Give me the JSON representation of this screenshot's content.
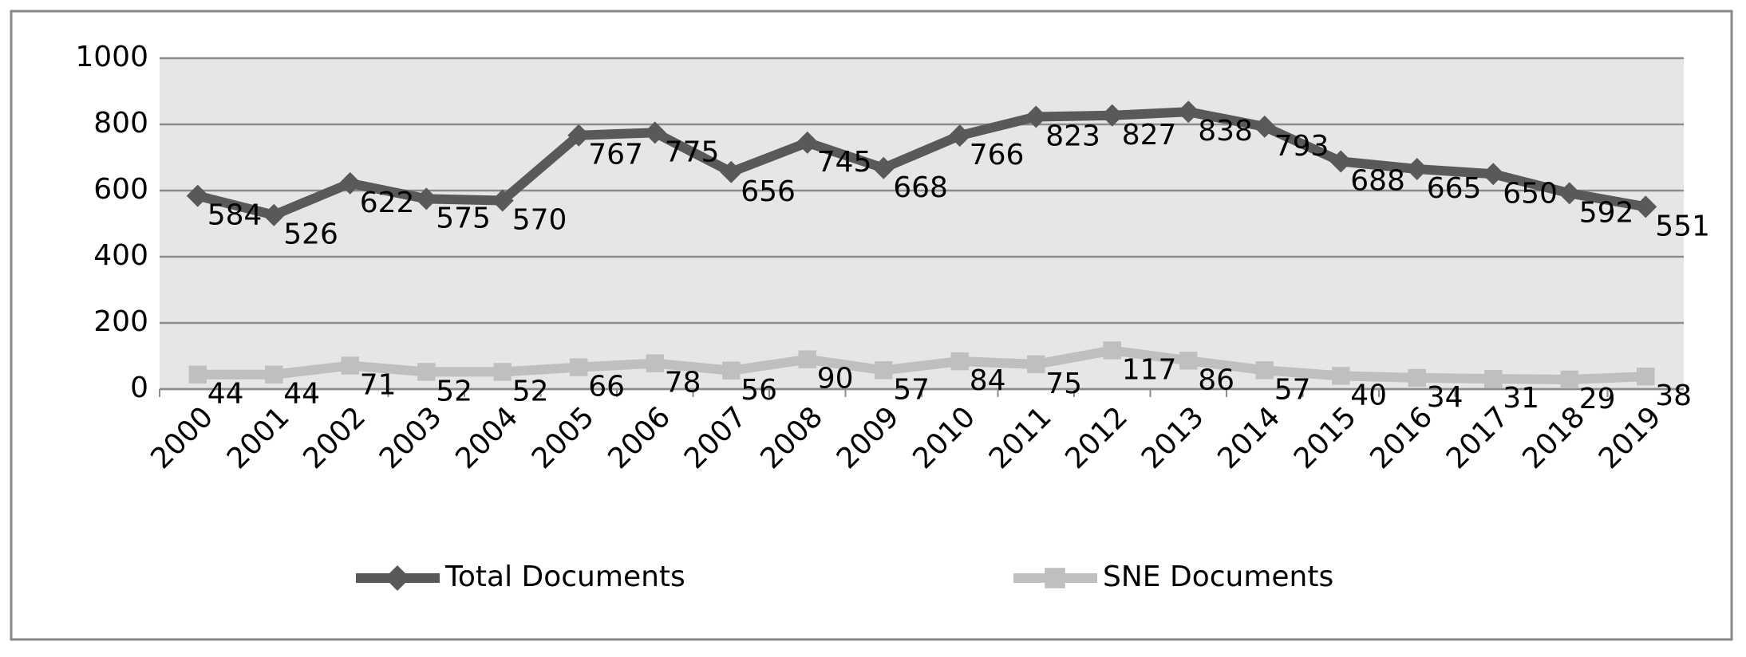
{
  "chart_data": {
    "type": "line",
    "categories": [
      "2000",
      "2001",
      "2002",
      "2003",
      "2004",
      "2005",
      "2006",
      "2007",
      "2008",
      "2009",
      "2010",
      "2011",
      "2012",
      "2013",
      "2014",
      "2015",
      "2016",
      "2017",
      "2018",
      "2019"
    ],
    "series": [
      {
        "name": "Total Documents",
        "color": "#595959",
        "marker": "diamond",
        "values": [
          584,
          526,
          622,
          575,
          570,
          767,
          775,
          656,
          745,
          668,
          766,
          823,
          827,
          838,
          793,
          688,
          665,
          650,
          592,
          551
        ]
      },
      {
        "name": "SNE Documents",
        "color": "#bfbfbf",
        "marker": "square",
        "values": [
          44,
          44,
          71,
          52,
          52,
          66,
          78,
          56,
          90,
          57,
          84,
          75,
          117,
          86,
          57,
          40,
          34,
          31,
          29,
          38
        ]
      }
    ],
    "ylim": [
      0,
      1000
    ],
    "yticks": [
      0,
      200,
      400,
      600,
      800,
      1000
    ],
    "grid": true,
    "legend": "bottom"
  }
}
